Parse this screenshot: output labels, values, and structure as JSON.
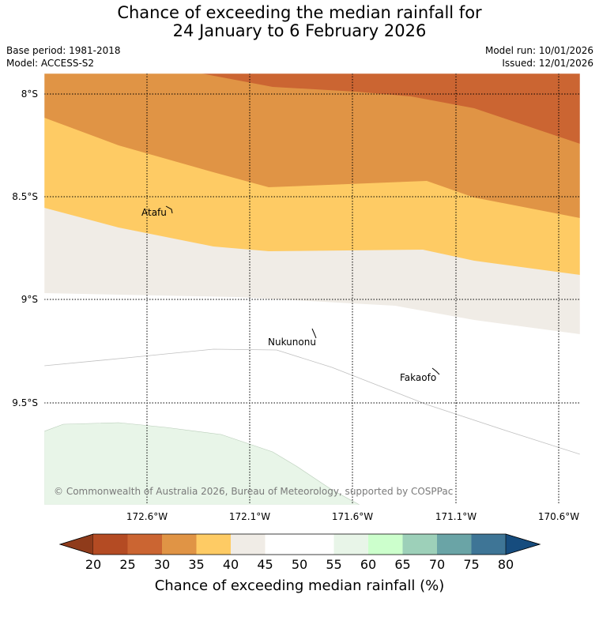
{
  "title_line1": "Chance of exceeding the median rainfall for",
  "title_line2": "24 January to 6 February 2026",
  "meta": {
    "base_period": "Base period: 1981-2018",
    "model": "Model: ACCESS-S2",
    "model_run": "Model run: 10/01/2026",
    "issued": "Issued: 12/01/2026"
  },
  "map": {
    "lat_labels": [
      "8°S",
      "8.5°S",
      "9°S",
      "9.5°S"
    ],
    "lon_labels": [
      "172.6°W",
      "172.1°W",
      "171.6°W",
      "171.1°W",
      "170.6°W"
    ],
    "places": [
      "Atafu",
      "Nukunonu",
      "Fakaofo"
    ],
    "copyright": "© Commonwealth of Australia 2026, Bureau of Meteorology, supported by COSPPac"
  },
  "colorbar": {
    "ticks": [
      "20",
      "25",
      "30",
      "35",
      "40",
      "45",
      "50",
      "55",
      "60",
      "65",
      "70",
      "75",
      "80"
    ],
    "colors": {
      "below_20": "#8f3b1b",
      "20-25": "#b44b23",
      "25-30": "#cb6532",
      "30-35": "#e09445",
      "35-40": "#fecb64",
      "40-45": "#f0ece6",
      "45-50": "#ffffff",
      "50-55": "#ffffff",
      "55-60": "#e8f5e8",
      "60-65": "#ccffcc",
      "65-70": "#9dd0b9",
      "70-75": "#6aa4a6",
      "75-80": "#3e7596",
      "above_80": "#164c7e"
    },
    "label": "Chance of exceeding median rainfall (%)"
  }
}
